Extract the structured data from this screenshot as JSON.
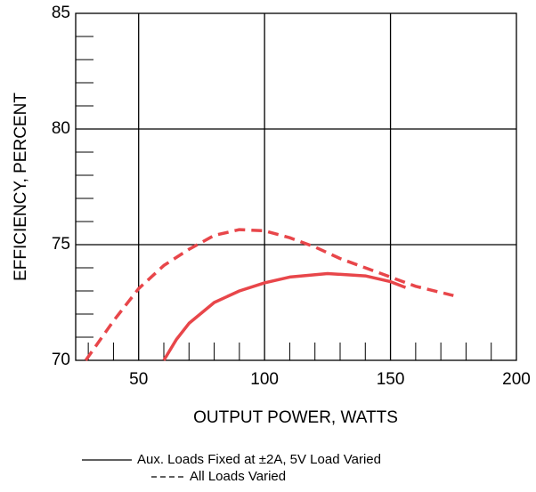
{
  "chart_data": {
    "type": "line",
    "xlabel": "OUTPUT POWER, WATTS",
    "ylabel": "EFFICIENCY, PERCENT",
    "xlim": [
      25,
      200
    ],
    "ylim": [
      70,
      85
    ],
    "xticks": [
      50,
      100,
      150,
      200
    ],
    "yticks": [
      70,
      75,
      80,
      85
    ],
    "xticks_minor": [
      30,
      40,
      60,
      70,
      80,
      90,
      110,
      120,
      130,
      140,
      160,
      170,
      180,
      190
    ],
    "yticks_minor": [
      71,
      72,
      73,
      74,
      76,
      77,
      78,
      79,
      81,
      82,
      83,
      84
    ],
    "grid": true,
    "series": [
      {
        "name": "Aux. Loads Fixed at ±2A, 5V Load Varied",
        "color": "#e8464a",
        "style": "solid",
        "x": [
          60,
          65,
          70,
          80,
          90,
          100,
          110,
          125,
          140,
          150,
          156
        ],
        "values": [
          70,
          70.9,
          71.6,
          72.5,
          73.0,
          73.35,
          73.6,
          73.75,
          73.65,
          73.4,
          73.15
        ]
      },
      {
        "name": "All Loads Varied",
        "color": "#e8464a",
        "style": "dashed",
        "x": [
          29,
          40,
          50,
          60,
          70,
          80,
          90,
          100,
          110,
          120,
          130,
          140,
          150,
          160,
          175
        ],
        "values": [
          70,
          71.7,
          73.1,
          74.1,
          74.8,
          75.4,
          75.65,
          75.6,
          75.3,
          74.9,
          74.4,
          74.0,
          73.6,
          73.2,
          72.8
        ]
      }
    ]
  }
}
